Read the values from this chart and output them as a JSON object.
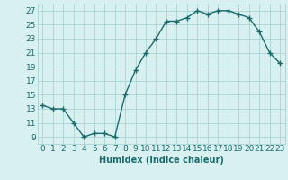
{
  "x": [
    0,
    1,
    2,
    3,
    4,
    5,
    6,
    7,
    8,
    9,
    10,
    11,
    12,
    13,
    14,
    15,
    16,
    17,
    18,
    19,
    20,
    21,
    22,
    23
  ],
  "y": [
    13.5,
    13.0,
    13.0,
    11.0,
    9.0,
    9.5,
    9.5,
    9.0,
    15.0,
    18.5,
    21.0,
    23.0,
    25.5,
    25.5,
    26.0,
    27.0,
    26.5,
    27.0,
    27.0,
    26.5,
    26.0,
    24.0,
    21.0,
    19.5
  ],
  "line_color": "#1a6b6b",
  "marker": "+",
  "markersize": 4,
  "linewidth": 1.0,
  "bg_color": "#d8f0f0",
  "grid_color": "#aad4d4",
  "xlabel": "Humidex (Indice chaleur)",
  "xlabel_fontsize": 7,
  "ylabel_ticks": [
    9,
    11,
    13,
    15,
    17,
    19,
    21,
    23,
    25,
    27
  ],
  "xlim": [
    -0.5,
    23.5
  ],
  "ylim": [
    8.0,
    28.0
  ],
  "xtick_labels": [
    "0",
    "1",
    "2",
    "3",
    "4",
    "5",
    "6",
    "7",
    "8",
    "9",
    "10",
    "11",
    "12",
    "13",
    "14",
    "15",
    "16",
    "17",
    "18",
    "19",
    "20",
    "21",
    "22",
    "23"
  ],
  "tick_fontsize": 6.5
}
